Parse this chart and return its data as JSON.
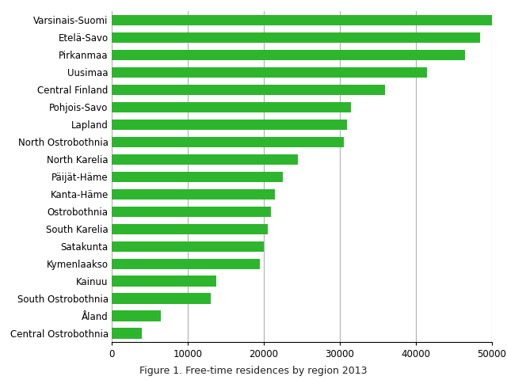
{
  "title": "Figure 1. Free-time residences by region 2013",
  "categories": [
    "Central Ostrobothnia",
    "Åland",
    "South Ostrobothnia",
    "Kainuu",
    "Kymenlaakso",
    "Satakunta",
    "South Karelia",
    "Ostrobothnia",
    "Kanta-Häme",
    "Päijät-Häme",
    "North Karelia",
    "North Ostrobothnia",
    "Lapland",
    "Pohjois-Savo",
    "Central Finland",
    "Uusimaa",
    "Pirkanmaa",
    "Etelä-Savo",
    "Varsinais-Suomi"
  ],
  "values": [
    4000,
    6500,
    13000,
    13800,
    19500,
    20000,
    20500,
    21000,
    21500,
    22500,
    24500,
    30500,
    31000,
    31500,
    36000,
    41500,
    46500,
    48500,
    50000
  ],
  "bar_color": "#2db52d",
  "xlim": [
    0,
    50000
  ],
  "xticks": [
    0,
    10000,
    20000,
    30000,
    40000,
    50000
  ],
  "xticklabels": [
    "0",
    "10000",
    "20000",
    "30000",
    "40000",
    "50000"
  ],
  "grid_color": "#b0b0b0",
  "background_color": "#ffffff",
  "bar_height": 0.6,
  "label_fontsize": 8.5,
  "tick_fontsize": 8.5,
  "title_fontsize": 9
}
